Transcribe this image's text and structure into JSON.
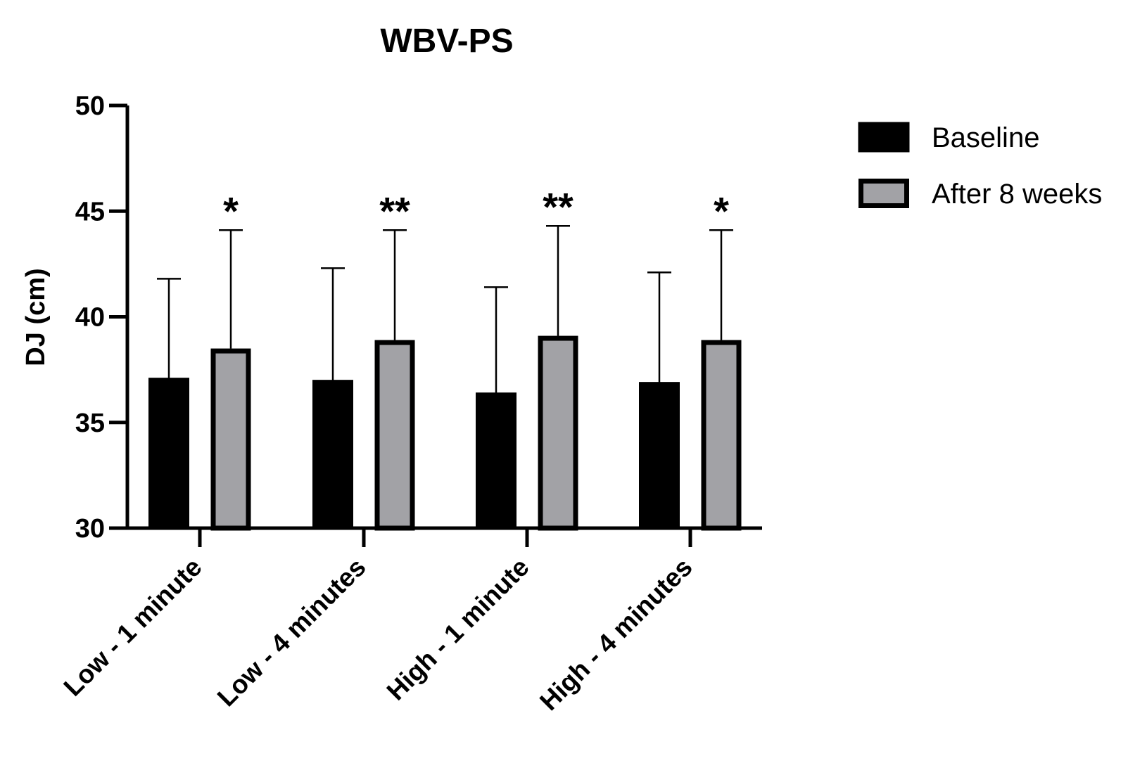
{
  "chart_data": {
    "type": "bar",
    "title": "WBV-PS",
    "xlabel": "",
    "ylabel": "DJ (cm)",
    "ylim": [
      30,
      50
    ],
    "yticks": [
      30,
      35,
      40,
      45,
      50
    ],
    "grid": false,
    "legend_position": "top-right",
    "categories": [
      "Low - 1 minute",
      "Low - 4 minutes",
      "High - 1 minute",
      "High - 4 minutes"
    ],
    "series": [
      {
        "name": "Baseline",
        "color": "#000000",
        "values": [
          37.1,
          37.0,
          36.4,
          36.9
        ],
        "error_upper": [
          41.8,
          42.3,
          41.4,
          42.1
        ]
      },
      {
        "name": "After 8 weeks",
        "color": "#a2a2a6",
        "values": [
          38.5,
          38.9,
          39.1,
          38.9
        ],
        "error_upper": [
          44.1,
          44.1,
          44.3,
          44.1
        ]
      }
    ],
    "annotations": [
      "*",
      "**",
      "**",
      "*"
    ]
  }
}
